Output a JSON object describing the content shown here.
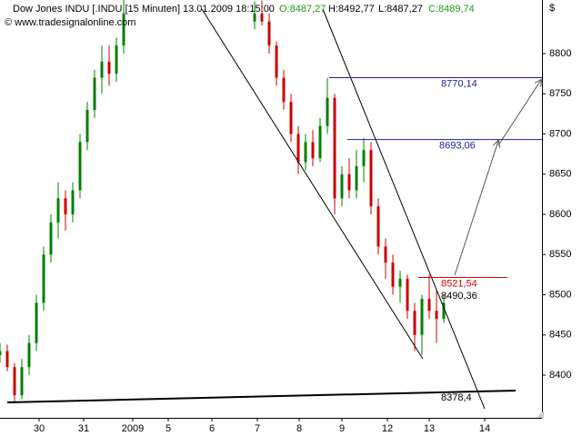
{
  "chart_data": {
    "type": "candlestick",
    "title": "Dow Jones INDU [.INDU [15 Minuten]",
    "datetime": "13.01.2009 18:15:00",
    "ohlc_labels": [
      "O:8487,27",
      "H:8492,77",
      "L:8487,27",
      "C:8489,74"
    ],
    "credit": "© www.tradesignalonline.com",
    "y_label": "$",
    "up_color": "#008000",
    "down_color": "#cc0000",
    "xlim": [
      0,
      149
    ],
    "ylim": [
      8346.9,
      8866.7
    ],
    "yticks": [
      8400,
      8450,
      8500,
      8550,
      8600,
      8650,
      8700,
      8750,
      8800
    ],
    "xticks": [
      {
        "value": 10.75,
        "label": "30"
      },
      {
        "value": 23,
        "label": "31"
      },
      {
        "value": 36.5,
        "label": "2009"
      },
      {
        "value": 46.25,
        "label": "5"
      },
      {
        "value": 58.25,
        "label": "6"
      },
      {
        "value": 70.75,
        "label": "7"
      },
      {
        "value": 82.25,
        "label": "8"
      },
      {
        "value": 94,
        "label": "9"
      },
      {
        "value": 106.5,
        "label": "12"
      },
      {
        "value": 118,
        "label": "13"
      },
      {
        "value": 133.25,
        "label": "14"
      }
    ],
    "x": [
      0,
      2,
      4,
      6,
      8,
      10,
      12,
      14,
      16,
      18,
      20,
      22,
      24,
      26,
      28,
      30,
      32,
      34,
      70,
      72,
      74,
      76,
      78,
      80,
      82,
      84,
      86,
      88,
      90,
      92,
      94,
      96,
      98,
      100,
      102,
      104,
      106,
      108,
      110,
      112,
      114,
      116,
      118,
      120,
      122
    ],
    "open": [
      8425,
      8430,
      8410,
      8375,
      8410,
      8440,
      8490,
      8550,
      8590,
      8620,
      8600,
      8630,
      8690,
      8730,
      8770,
      8790,
      8775,
      8810,
      8840,
      8850,
      8840,
      8810,
      8770,
      8740,
      8700,
      8665,
      8690,
      8670,
      8710,
      8745,
      8620,
      8650,
      8630,
      8660,
      8680,
      8610,
      8560,
      8540,
      8510,
      8520,
      8480,
      8450,
      8495,
      8480,
      8470
    ],
    "high": [
      8440,
      8438,
      8415,
      8420,
      8450,
      8500,
      8560,
      8600,
      8640,
      8630,
      8640,
      8700,
      8740,
      8780,
      8810,
      8810,
      8820,
      8870,
      8865,
      8866,
      8850,
      8815,
      8780,
      8750,
      8710,
      8700,
      8705,
      8720,
      8770,
      8750,
      8660,
      8670,
      8680,
      8695,
      8690,
      8620,
      8570,
      8550,
      8530,
      8525,
      8490,
      8500,
      8525,
      8505,
      8500
    ],
    "low": [
      8415,
      8405,
      8365,
      8370,
      8400,
      8430,
      8480,
      8540,
      8570,
      8580,
      8590,
      8620,
      8680,
      8720,
      8750,
      8760,
      8765,
      8800,
      8830,
      8835,
      8800,
      8760,
      8730,
      8690,
      8650,
      8655,
      8660,
      8665,
      8700,
      8600,
      8610,
      8620,
      8620,
      8640,
      8600,
      8550,
      8520,
      8500,
      8490,
      8470,
      8430,
      8425,
      8470,
      8440,
      8465
    ],
    "close": [
      8430,
      8410,
      8375,
      8410,
      8440,
      8490,
      8550,
      8590,
      8620,
      8600,
      8630,
      8690,
      8730,
      8770,
      8790,
      8775,
      8810,
      8850,
      8850,
      8840,
      8810,
      8770,
      8740,
      8700,
      8665,
      8690,
      8670,
      8710,
      8745,
      8620,
      8650,
      8630,
      8660,
      8680,
      8610,
      8560,
      8540,
      8510,
      8520,
      8480,
      8450,
      8495,
      8480,
      8470,
      8490
    ],
    "levels": [
      {
        "value": 8770.14,
        "label": "8770,14",
        "color": "#1a1aa6",
        "x": [
          90.5,
          149
        ]
      },
      {
        "value": 8693.06,
        "label": "8693,06",
        "color": "#1a1aa6",
        "x": [
          95.5,
          149
        ]
      },
      {
        "value": 8521.54,
        "label": "8521,54",
        "color": "#e00000",
        "x": [
          115,
          139.5
        ]
      },
      {
        "value": 8490.36,
        "label": "8490,36",
        "color": "#000000"
      },
      {
        "value": 8378.4,
        "label": "8378,4",
        "color": "#000000"
      }
    ],
    "trendlines": [
      {
        "x": [
          55.5,
          116.25
        ],
        "y": [
          8855.4,
          8420.3
        ],
        "color": "#000000"
      },
      {
        "x": [
          88.75,
          133.25
        ],
        "y": [
          8855.4,
          8358.2
        ],
        "color": "#000000"
      },
      {
        "x": [
          2,
          141.75
        ],
        "y": [
          8366.1,
          8380.8
        ],
        "color": "#000000",
        "width": 2
      }
    ],
    "arrows": [
      {
        "x": [
          125,
          137
        ],
        "y": [
          8524.3,
          8691.5
        ],
        "color": "#555555"
      },
      {
        "x": [
          137,
          148.75
        ],
        "y": [
          8685.9,
          8767.2
        ],
        "color": "#555555"
      }
    ]
  }
}
